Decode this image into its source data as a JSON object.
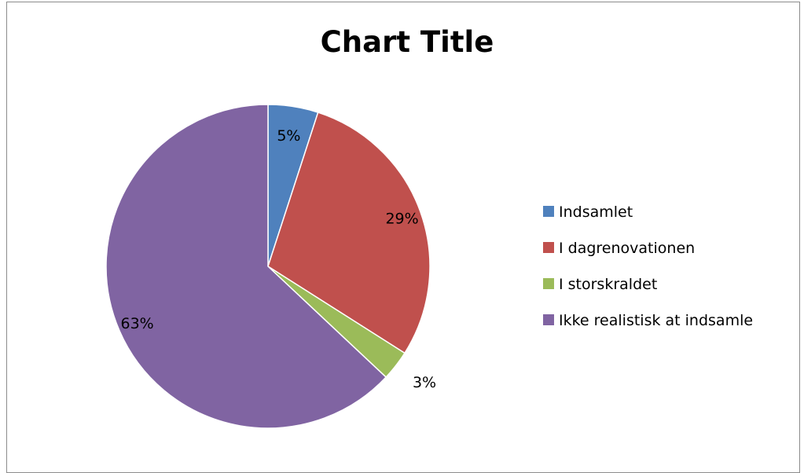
{
  "chart_data": {
    "type": "pie",
    "title": "Chart Title",
    "categories": [
      "Indsamlet",
      "I dagrenovationen",
      "I storskraldet",
      "Ikke realistisk at indsamle"
    ],
    "values": [
      5,
      29,
      3,
      63
    ],
    "data_labels": [
      "5%",
      "29%",
      "3%",
      "63%"
    ],
    "colors": [
      "#4f81bd",
      "#c0504d",
      "#9bbb59",
      "#8064a2"
    ],
    "legend_position": "right",
    "start_angle": "12 o'clock, clockwise"
  }
}
